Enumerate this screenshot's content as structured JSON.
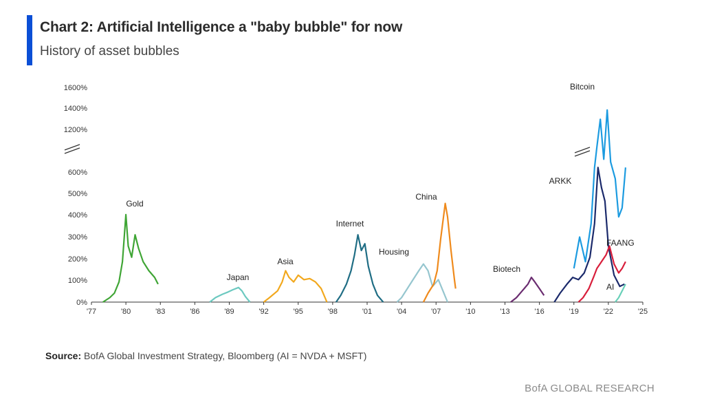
{
  "header": {
    "title": "Chart 2: Artificial Intelligence a \"baby bubble\" for now",
    "subtitle": "History of asset bubbles"
  },
  "footer": {
    "source_label": "Source:",
    "source_text": " BofA Global Investment Strategy, Bloomberg (AI = NVDA + MSFT)",
    "brand": "BofA GLOBAL RESEARCH"
  },
  "colors": {
    "accent": "#0b4fd6",
    "Gold": "#3fa535",
    "Japan": "#6cc9c0",
    "Asia": "#f2a81d",
    "Internet": "#1f6d84",
    "Housing": "#96c6cf",
    "China": "#ef8a1c",
    "Biotech": "#6a2c70",
    "ARKK": "#1b2a6b",
    "Bitcoin": "#1c9be0",
    "FAANG": "#d81e3b",
    "AI": "#68d0b8"
  },
  "chart_data": {
    "type": "line",
    "title": "Chart 2: Artificial Intelligence a \"baby bubble\" for now",
    "subtitle": "History of asset bubbles",
    "xlabel": "",
    "ylabel": "",
    "x_tick_labels": [
      "'77",
      "'80",
      "'83",
      "'86",
      "'89",
      "'92",
      "'95",
      "'98",
      "'01",
      "'04",
      "'07",
      "'10",
      "'13",
      "'16",
      "'19",
      "'22",
      "'25"
    ],
    "y_tick_labels": [
      "0%",
      "100%",
      "200%",
      "300%",
      "400%",
      "500%",
      "600%",
      "1200%",
      "1400%",
      "1600%"
    ],
    "y_axis_break": "600% to 1000% (//)",
    "grid": false,
    "legend": "labels placed next to each series",
    "series": [
      {
        "name": "Gold",
        "points": [
          [
            1978.0,
            0
          ],
          [
            1978.6,
            20
          ],
          [
            1979.0,
            40
          ],
          [
            1979.4,
            90
          ],
          [
            1979.7,
            180
          ],
          [
            1980.0,
            390
          ],
          [
            1980.2,
            250
          ],
          [
            1980.5,
            200
          ],
          [
            1980.8,
            300
          ],
          [
            1981.1,
            240
          ],
          [
            1981.5,
            180
          ],
          [
            1982.0,
            140
          ],
          [
            1982.5,
            110
          ],
          [
            1982.8,
            80
          ]
        ]
      },
      {
        "name": "Japan",
        "points": [
          [
            1987.3,
            0
          ],
          [
            1987.8,
            20
          ],
          [
            1988.4,
            35
          ],
          [
            1988.9,
            45
          ],
          [
            1989.3,
            55
          ],
          [
            1989.8,
            65
          ],
          [
            1990.1,
            50
          ],
          [
            1990.4,
            25
          ],
          [
            1990.8,
            0
          ]
        ]
      },
      {
        "name": "Asia",
        "points": [
          [
            1992.0,
            0
          ],
          [
            1992.5,
            20
          ],
          [
            1993.2,
            50
          ],
          [
            1993.6,
            90
          ],
          [
            1993.9,
            140
          ],
          [
            1994.2,
            110
          ],
          [
            1994.6,
            90
          ],
          [
            1995.0,
            120
          ],
          [
            1995.5,
            100
          ],
          [
            1996.0,
            105
          ],
          [
            1996.5,
            90
          ],
          [
            1997.0,
            60
          ],
          [
            1997.5,
            0
          ]
        ]
      },
      {
        "name": "Internet",
        "points": [
          [
            1998.3,
            0
          ],
          [
            1998.7,
            30
          ],
          [
            1999.2,
            80
          ],
          [
            1999.6,
            140
          ],
          [
            1999.9,
            210
          ],
          [
            2000.2,
            300
          ],
          [
            2000.5,
            230
          ],
          [
            2000.8,
            260
          ],
          [
            2001.1,
            160
          ],
          [
            2001.5,
            80
          ],
          [
            2001.9,
            30
          ],
          [
            2002.4,
            0
          ]
        ]
      },
      {
        "name": "Housing",
        "points": [
          [
            2003.6,
            0
          ],
          [
            2004.0,
            20
          ],
          [
            2004.5,
            60
          ],
          [
            2005.0,
            100
          ],
          [
            2005.5,
            140
          ],
          [
            2005.9,
            170
          ],
          [
            2006.3,
            140
          ],
          [
            2006.7,
            70
          ],
          [
            2007.2,
            100
          ],
          [
            2007.6,
            50
          ],
          [
            2008.0,
            0
          ]
        ]
      },
      {
        "name": "China",
        "points": [
          [
            2005.9,
            0
          ],
          [
            2006.3,
            40
          ],
          [
            2006.8,
            80
          ],
          [
            2007.1,
            140
          ],
          [
            2007.4,
            280
          ],
          [
            2007.8,
            440
          ],
          [
            2008.0,
            380
          ],
          [
            2008.3,
            230
          ],
          [
            2008.6,
            100
          ],
          [
            2008.7,
            60
          ]
        ]
      },
      {
        "name": "Biotech",
        "points": [
          [
            2013.5,
            0
          ],
          [
            2014.0,
            20
          ],
          [
            2014.5,
            50
          ],
          [
            2015.0,
            80
          ],
          [
            2015.3,
            110
          ],
          [
            2015.6,
            90
          ],
          [
            2016.0,
            60
          ],
          [
            2016.4,
            30
          ]
        ]
      },
      {
        "name": "ARKK",
        "points": [
          [
            2017.3,
            0
          ],
          [
            2017.8,
            40
          ],
          [
            2018.4,
            80
          ],
          [
            2018.9,
            110
          ],
          [
            2019.4,
            100
          ],
          [
            2019.9,
            130
          ],
          [
            2020.4,
            200
          ],
          [
            2020.8,
            350
          ],
          [
            2021.1,
            600
          ],
          [
            2021.4,
            510
          ],
          [
            2021.7,
            450
          ],
          [
            2022.0,
            250
          ],
          [
            2022.5,
            120
          ],
          [
            2023.0,
            70
          ],
          [
            2023.4,
            80
          ]
        ]
      },
      {
        "name": "Bitcoin",
        "points": [
          [
            2019.0,
            150
          ],
          [
            2019.5,
            290
          ],
          [
            2020.0,
            180
          ],
          [
            2020.5,
            350
          ],
          [
            2020.8,
            600
          ],
          [
            2021.0,
            1100
          ],
          [
            2021.3,
            1400
          ],
          [
            2021.6,
            900
          ],
          [
            2021.9,
            1500
          ],
          [
            2022.2,
            800
          ],
          [
            2022.6,
            550
          ],
          [
            2022.9,
            380
          ],
          [
            2023.2,
            420
          ],
          [
            2023.5,
            600
          ]
        ]
      },
      {
        "name": "FAANG",
        "points": [
          [
            2019.4,
            0
          ],
          [
            2019.8,
            20
          ],
          [
            2020.3,
            60
          ],
          [
            2020.7,
            110
          ],
          [
            2021.0,
            150
          ],
          [
            2021.4,
            180
          ],
          [
            2021.8,
            210
          ],
          [
            2022.1,
            250
          ],
          [
            2022.5,
            170
          ],
          [
            2022.9,
            130
          ],
          [
            2023.2,
            150
          ],
          [
            2023.5,
            180
          ]
        ]
      },
      {
        "name": "AI",
        "points": [
          [
            2022.6,
            0
          ],
          [
            2022.9,
            20
          ],
          [
            2023.2,
            50
          ],
          [
            2023.5,
            80
          ]
        ]
      }
    ],
    "series_labels": [
      "Gold",
      "Japan",
      "Asia",
      "Internet",
      "Housing",
      "China",
      "Biotech",
      "ARKK",
      "Bitcoin",
      "FAANG",
      "AI"
    ],
    "ylim": [
      0,
      1600
    ],
    "xlim": [
      1977,
      2025
    ]
  }
}
